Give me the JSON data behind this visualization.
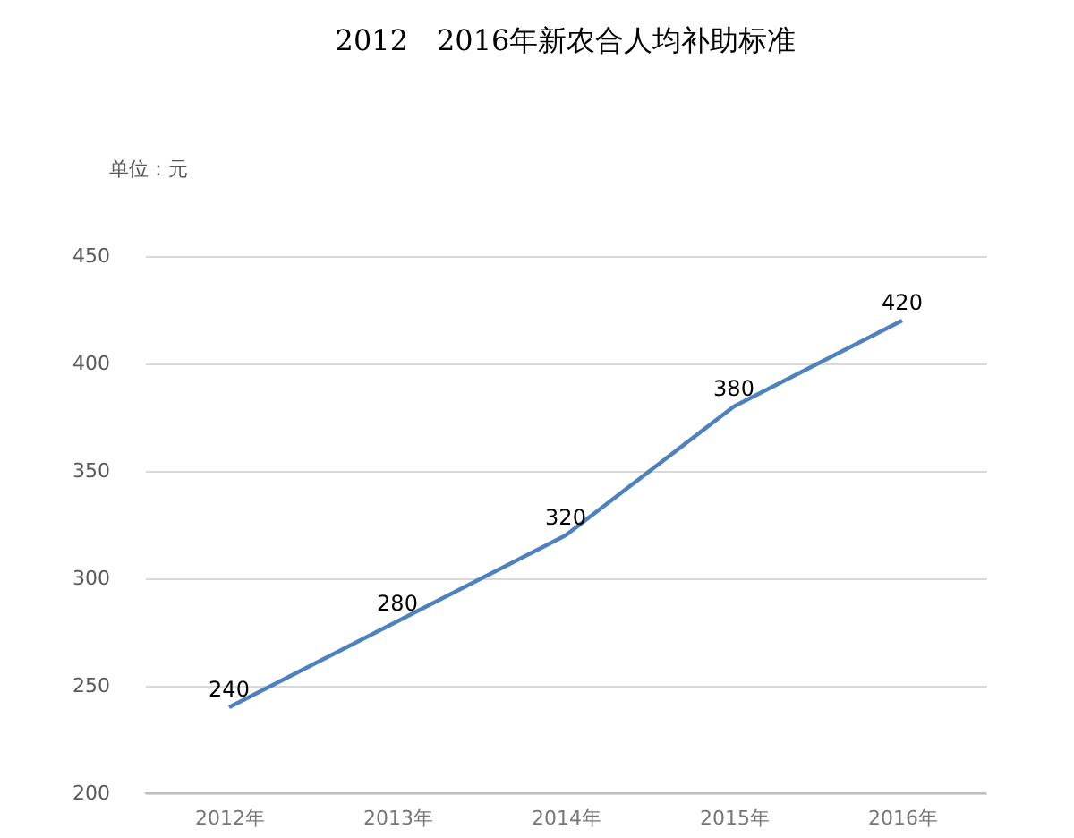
{
  "chart_data": {
    "type": "line",
    "title": "2012　2016年新农合人均补助标准",
    "annotations": [
      "单位：元"
    ],
    "categories": [
      "2012年",
      "2013年",
      "2014年",
      "2015年",
      "2016年"
    ],
    "series": [
      {
        "color": "#4f81bd",
        "values": [
          240,
          280,
          320,
          380,
          420
        ]
      }
    ],
    "ylim": [
      200,
      450
    ],
    "yticks": [
      200,
      250,
      300,
      350,
      400,
      450
    ],
    "grid": "y",
    "data_labels": true,
    "marker": "none",
    "line_style": "solid"
  }
}
